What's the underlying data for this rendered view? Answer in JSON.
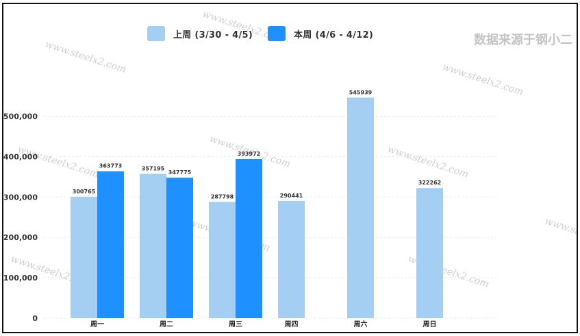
{
  "source_note": "数据来源于钢小二",
  "colors": {
    "last_week": "#A4CFF3",
    "this_week": "#1E90FF",
    "grid": "#e9e9e9",
    "watermark": "#cfcfcf"
  },
  "watermark_text": "www.steelx2.com",
  "chart_data": {
    "type": "bar",
    "title": "",
    "xlabel": "",
    "ylabel": "",
    "ylim": [
      0,
      600000
    ],
    "yticks": [
      0,
      100000,
      200000,
      300000,
      400000,
      500000
    ],
    "ytick_labels": [
      "0",
      "100,000",
      "200,000",
      "300,000",
      "400,000",
      "500,000"
    ],
    "categories": [
      "周一",
      "周二",
      "周三",
      "周四",
      "周六",
      "周日"
    ],
    "series": [
      {
        "name": "上周 (3/30 - 4/5)",
        "values": [
          300765,
          357195,
          287798,
          290441,
          545939,
          322262
        ]
      },
      {
        "name": "本周 (4/6 - 4/12)",
        "values": [
          363773,
          347775,
          393972,
          null,
          null,
          null
        ]
      }
    ],
    "legend_position": "top-center",
    "grid": true
  }
}
